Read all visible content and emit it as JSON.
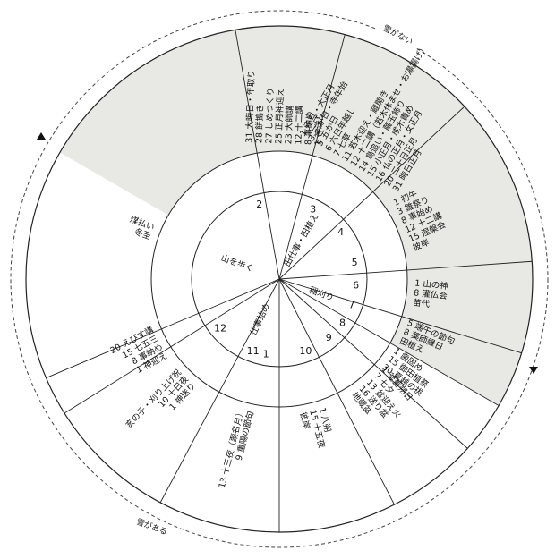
{
  "snow_labels": {
    "without_snow": "雪がない",
    "with_snow": "雪がある"
  },
  "colors": {
    "shade": "#e8e8e5",
    "line": "#222222",
    "bg": "#ffffff",
    "dash": "#444444"
  },
  "months": [
    "1",
    "2",
    "3",
    "4",
    "5",
    "6",
    "7",
    "8",
    "9",
    "10",
    "11",
    "12"
  ],
  "sectors": [
    {
      "id": "m1",
      "shaded": false,
      "lines": [
        "31 大晦日・年取り",
        "28 餅搗き",
        "27 しめつくり",
        "25 正月神迎え",
        "23 大師講",
        "12 十二講",
        "8 事納め",
        "1 神送り"
      ]
    },
    {
      "id": "m2",
      "shaded": false,
      "lines": [
        "1 元旦・大正月",
        "3 三が日・寺年始",
        "5 五か日",
        "6 六日年越し",
        "7 七草",
        "11 若木迎え・蔵開き",
        "12 十二講（若木休ませ・お湯揚げ）",
        "14 鳥追い・繭玉飾り",
        "15 小正月・成木責め",
        "16 仏の正月・女正月",
        "20 二十日正月",
        "31 晦日正月"
      ]
    },
    {
      "id": "m3",
      "shaded": false,
      "lines": [
        "1 初午",
        "3 雛祭り",
        "8 事始め",
        "12 十二講",
        "15 涅槃会",
        "彼岸"
      ]
    },
    {
      "id": "m4",
      "shaded": false,
      "lines": [
        "1 山の神",
        "8 灌仏会",
        "苗代"
      ]
    },
    {
      "id": "m5",
      "shaded": true,
      "lines": [
        "5 端午の節句",
        "8 薬師縁日",
        "田植え"
      ]
    },
    {
      "id": "m6",
      "shaded": true,
      "lines": [
        "1 歯固め",
        "15 御田植祭",
        "30 夏越の祓"
      ]
    },
    {
      "id": "m7",
      "shaded": true,
      "lines": [
        "1 釜蓋朔日",
        "7 七夕",
        "13 盆迎え火",
        "16 送り盆",
        "地蔵盆"
      ]
    },
    {
      "id": "m8",
      "shaded": true,
      "lines": [
        "1 八朔",
        "15 十五夜",
        "彼岸"
      ]
    },
    {
      "id": "m9",
      "shaded": true,
      "lines": [
        "9 重陽の節句",
        "13 十三夜（栗名月）"
      ]
    },
    {
      "id": "m10",
      "shaded": true,
      "lines": [
        "1 神送り",
        "10 十日夜",
        "亥の子・刈り上げ祝"
      ]
    },
    {
      "id": "m11",
      "shaded": true,
      "lines": [
        "1 神迎え",
        "8 事納め",
        "15 七五三",
        "20 えびす講"
      ]
    },
    {
      "id": "m12",
      "shaded": false,
      "lines": [
        "冬至",
        "煤払い"
      ]
    }
  ],
  "inner_arcs": [
    {
      "id": "a1",
      "text": "仕事始め"
    },
    {
      "id": "a2",
      "text": "山を歩く"
    },
    {
      "id": "a3",
      "text": "田仕事・田植え"
    },
    {
      "id": "a4",
      "text": "稲刈り"
    }
  ]
}
